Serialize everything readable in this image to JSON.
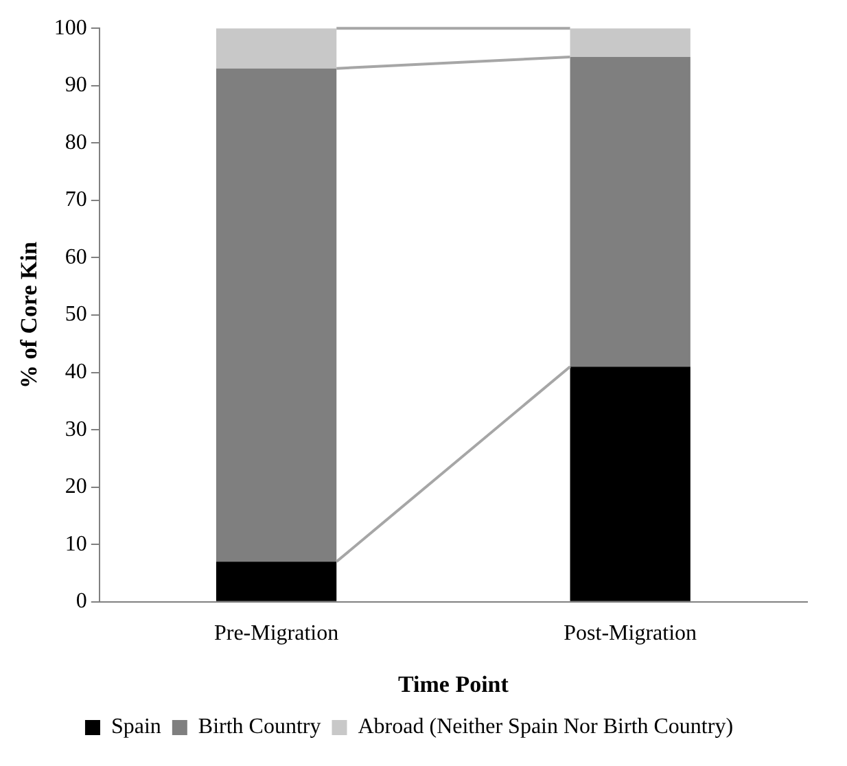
{
  "chart_data": {
    "type": "bar",
    "stacked": true,
    "xlabel": "Time Point",
    "ylabel": "% of Core Kin",
    "categories": [
      "Pre-Migration",
      "Post-Migration"
    ],
    "series": [
      {
        "name": "Spain",
        "color": "#000000",
        "values": [
          7,
          41
        ]
      },
      {
        "name": "Birth Country",
        "color": "#7f7f7f",
        "values": [
          86,
          54
        ]
      },
      {
        "name": "Abroad (Neither Spain Nor Birth Country)",
        "color": "#c8c8c8",
        "values": [
          7,
          5
        ]
      }
    ],
    "ylim": [
      0,
      100
    ],
    "yticks": [
      0,
      10,
      20,
      30,
      40,
      50,
      60,
      70,
      80,
      90,
      100
    ],
    "grid": false,
    "legend": "bottom"
  }
}
